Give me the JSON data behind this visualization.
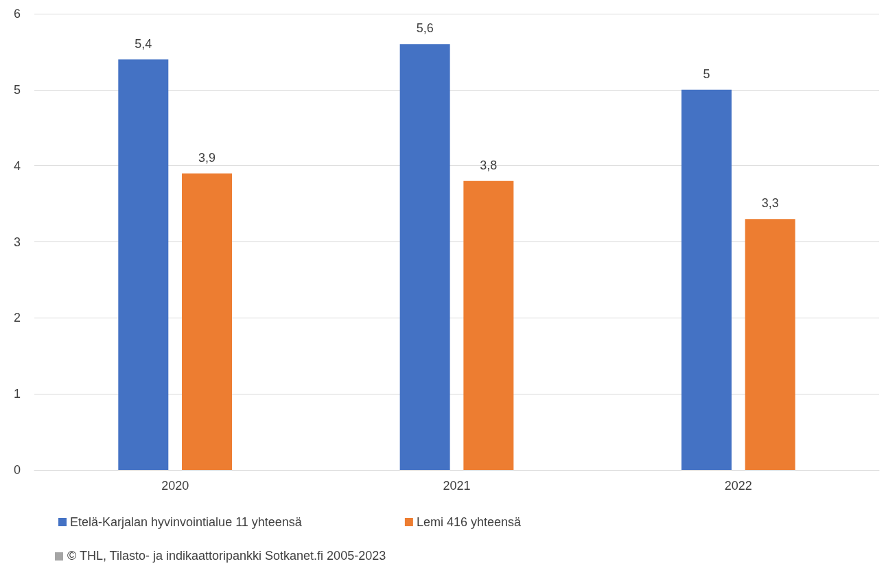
{
  "chart_data": {
    "type": "bar",
    "categories": [
      "2020",
      "2021",
      "2022"
    ],
    "series": [
      {
        "name": "Etelä-Karjalan hyvinvointialue 11 yhteensä",
        "color": "#4472c4",
        "values": [
          5.4,
          5.6,
          5
        ],
        "value_labels": [
          "5,4",
          "5,6",
          "5"
        ]
      },
      {
        "name": "Lemi 416 yhteensä",
        "color": "#ed7d31",
        "values": [
          3.9,
          3.8,
          3.3
        ],
        "value_labels": [
          "3,9",
          "3,8",
          "3,3"
        ]
      }
    ],
    "ylim": [
      0,
      6
    ],
    "yticks": [
      0,
      1,
      2,
      3,
      4,
      5,
      6
    ],
    "grid": "y",
    "legend": "bottom left",
    "annotations": [
      "© THL, Tilasto- ja indikaattoripankki Sotkanet.fi 2005-2023"
    ]
  }
}
